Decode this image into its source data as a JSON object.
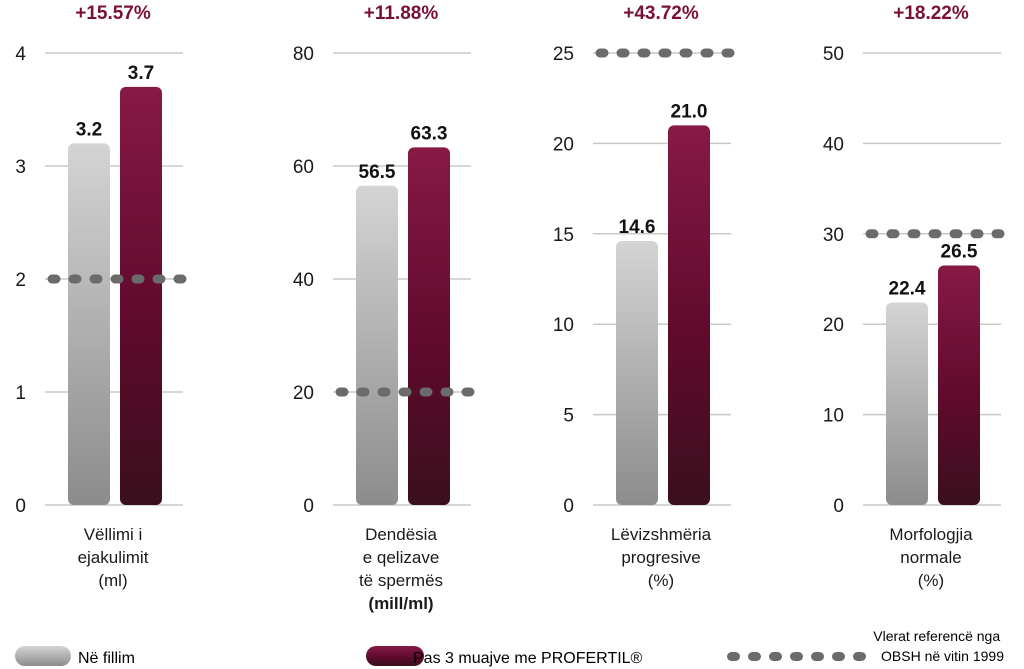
{
  "chart_data": [
    {
      "type": "bar",
      "change_label": "+15.57%",
      "xlabel_lines": [
        "Vëllimi i",
        "ejakulimit",
        "(ml)"
      ],
      "categories": [
        "Në fillim",
        "Pas 3 muajve me PROFERTIL®"
      ],
      "values": [
        3.2,
        3.7
      ],
      "value_labels": [
        "3.2",
        "3.7"
      ],
      "ylim": [
        0,
        4
      ],
      "yticks": [
        "0",
        "1",
        "2",
        "3",
        "4"
      ],
      "reference_value": 2,
      "grid": true
    },
    {
      "type": "bar",
      "change_label": "+11.88%",
      "xlabel_lines": [
        "Dendësia",
        "e qelizave",
        "të spermës",
        "(mill/ml)"
      ],
      "categories": [
        "Në fillim",
        "Pas 3 muajve me PROFERTIL®"
      ],
      "values": [
        56.5,
        63.3
      ],
      "value_labels": [
        "56.5",
        "63.3"
      ],
      "ylim": [
        0,
        80
      ],
      "yticks": [
        "0",
        "20",
        "40",
        "60",
        "80"
      ],
      "reference_value": 20,
      "grid": true
    },
    {
      "type": "bar",
      "change_label": "+43.72%",
      "xlabel_lines": [
        "Lëvizshmëria",
        "progresive",
        "(%)"
      ],
      "categories": [
        "Në fillim",
        "Pas 3 muajve me PROFERTIL®"
      ],
      "values": [
        14.6,
        21.0
      ],
      "value_labels": [
        "14.6",
        "21.0"
      ],
      "ylim": [
        0,
        25
      ],
      "yticks": [
        "0",
        "5",
        "10",
        "15",
        "20",
        "25"
      ],
      "reference_value": 25,
      "grid": true
    },
    {
      "type": "bar",
      "change_label": "+18.22%",
      "xlabel_lines": [
        "Morfologjia",
        "normale",
        "(%)"
      ],
      "categories": [
        "Në fillim",
        "Pas 3 muajve me PROFERTIL®"
      ],
      "values": [
        22.4,
        26.5
      ],
      "value_labels": [
        "22.4",
        "26.5"
      ],
      "ylim": [
        0,
        50
      ],
      "yticks": [
        "0",
        "10",
        "20",
        "30",
        "40",
        "50"
      ],
      "reference_value": 30,
      "grid": true
    }
  ],
  "legend": {
    "baseline_label": "Në fillim",
    "treatment_label": "Pas 3 muajve me PROFERTIL®",
    "reference_label_lines": [
      "Vlerat referencë nga",
      "OBSH në vitin 1999"
    ]
  },
  "colors": {
    "change_label": "#7a1038",
    "baseline_top": "#d4d4d4",
    "baseline_bottom": "#8c8c8c",
    "treatment_top": "#861a45",
    "treatment_mid": "#600a2c",
    "treatment_bottom": "#3a0f1d",
    "reference_dot": "#6b6b6b",
    "grid": "#c8c8c8",
    "axis_text": "#1a1a1a"
  }
}
